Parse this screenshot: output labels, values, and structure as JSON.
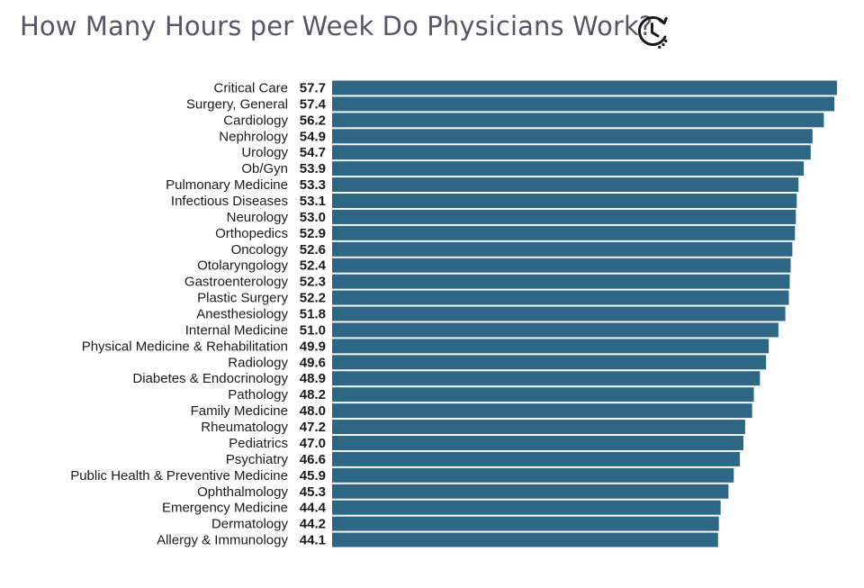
{
  "title": "How Many Hours per Week Do Physicians Work?",
  "icon": "clock-icon",
  "colors": {
    "bar": "#2e6785",
    "title": "#5a5468",
    "text": "#1a1a1a"
  },
  "chart_data": {
    "type": "bar",
    "orientation": "horizontal",
    "title": "How Many Hours per Week Do Physicians Work?",
    "xlabel": "",
    "ylabel": "",
    "xlim": [
      0,
      57.7
    ],
    "grid": false,
    "legend": "none",
    "categories": [
      "Critical Care",
      "Surgery, General",
      "Cardiology",
      "Nephrology",
      "Urology",
      "Ob/Gyn",
      "Pulmonary Medicine",
      "Infectious Diseases",
      "Neurology",
      "Orthopedics",
      "Oncology",
      "Otolaryngology",
      "Gastroenterology",
      "Plastic Surgery",
      "Anesthesiology",
      "Internal Medicine",
      "Physical Medicine & Rehabilitation",
      "Radiology",
      "Diabetes & Endocrinology",
      "Pathology",
      "Family Medicine",
      "Rheumatology",
      "Pediatrics",
      "Psychiatry",
      "Public Health & Preventive Medicine",
      "Ophthalmology",
      "Emergency Medicine",
      "Dermatology",
      "Allergy & Immunology"
    ],
    "values": [
      57.7,
      57.4,
      56.2,
      54.9,
      54.7,
      53.9,
      53.3,
      53.1,
      53.0,
      52.9,
      52.6,
      52.4,
      52.3,
      52.2,
      51.8,
      51.0,
      49.9,
      49.6,
      48.9,
      48.2,
      48.0,
      47.2,
      47.0,
      46.6,
      45.9,
      45.3,
      44.4,
      44.2,
      44.1
    ],
    "value_labels": [
      "57.7",
      "57.4",
      "56.2",
      "54.9",
      "54.7",
      "53.9",
      "53.3",
      "53.1",
      "53.0",
      "52.9",
      "52.6",
      "52.4",
      "52.3",
      "52.2",
      "51.8",
      "51.0",
      "49.9",
      "49.6",
      "48.9",
      "48.2",
      "48.0",
      "47.2",
      "47.0",
      "46.6",
      "45.9",
      "45.3",
      "44.4",
      "44.2",
      "44.1"
    ]
  }
}
